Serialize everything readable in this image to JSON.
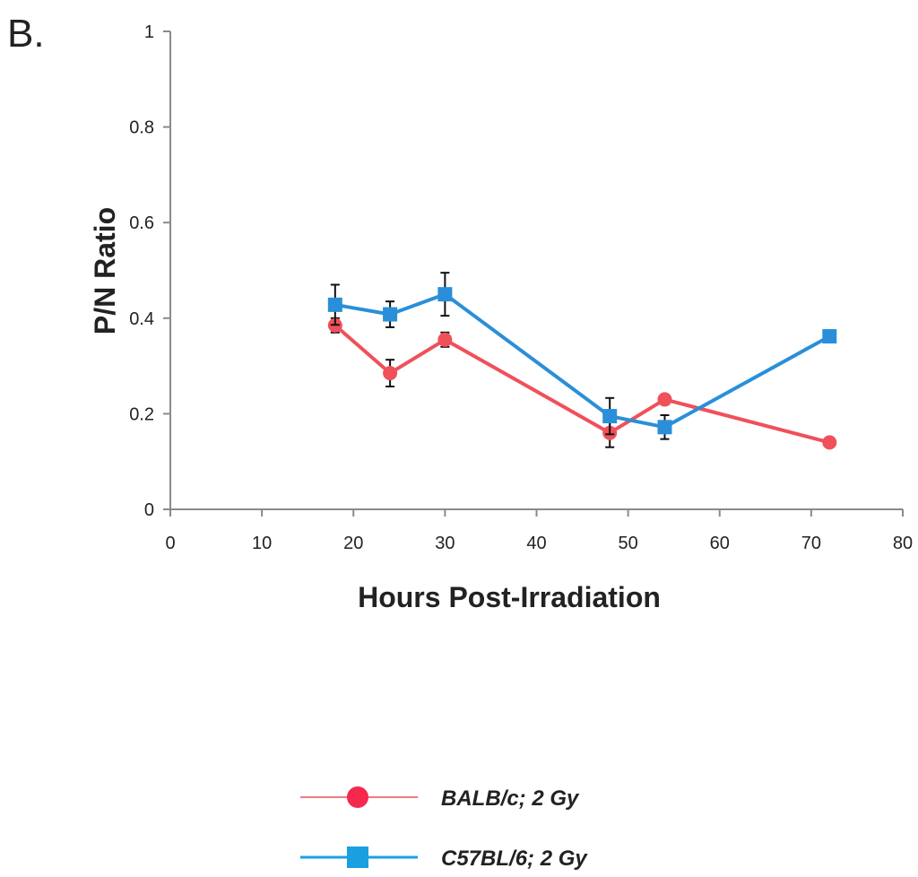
{
  "panel_label": "B.",
  "chart_data": {
    "type": "line",
    "title": "",
    "xlabel": "Hours Post-Irradiation",
    "ylabel": "P/N Ratio",
    "xlim": [
      0,
      80
    ],
    "ylim": [
      0,
      1
    ],
    "x_ticks": [
      0,
      10,
      20,
      30,
      40,
      50,
      60,
      70,
      80
    ],
    "y_ticks": [
      0,
      0.2,
      0.4,
      0.6,
      0.8,
      1
    ],
    "y_tick_labels": [
      "0",
      "0.2",
      "0.4",
      "0.6",
      "0.8",
      "1"
    ],
    "grid": false,
    "legend_position": "bottom",
    "series": [
      {
        "name": "BALB/c; 2 Gy",
        "color": "#f0505a",
        "marker": "circle",
        "x": [
          18,
          24,
          30,
          48,
          54,
          72
        ],
        "y": [
          0.385,
          0.285,
          0.355,
          0.16,
          0.23,
          0.14
        ],
        "error": [
          0.015,
          0.028,
          0.015,
          0.03,
          0.0,
          0.0
        ]
      },
      {
        "name": "C57BL/6; 2 Gy",
        "color": "#2a8fd8",
        "marker": "square",
        "x": [
          18,
          24,
          30,
          48,
          54,
          72
        ],
        "y": [
          0.428,
          0.408,
          0.45,
          0.195,
          0.172,
          0.362
        ],
        "error": [
          0.042,
          0.027,
          0.045,
          0.038,
          0.025,
          0.0
        ]
      }
    ]
  }
}
